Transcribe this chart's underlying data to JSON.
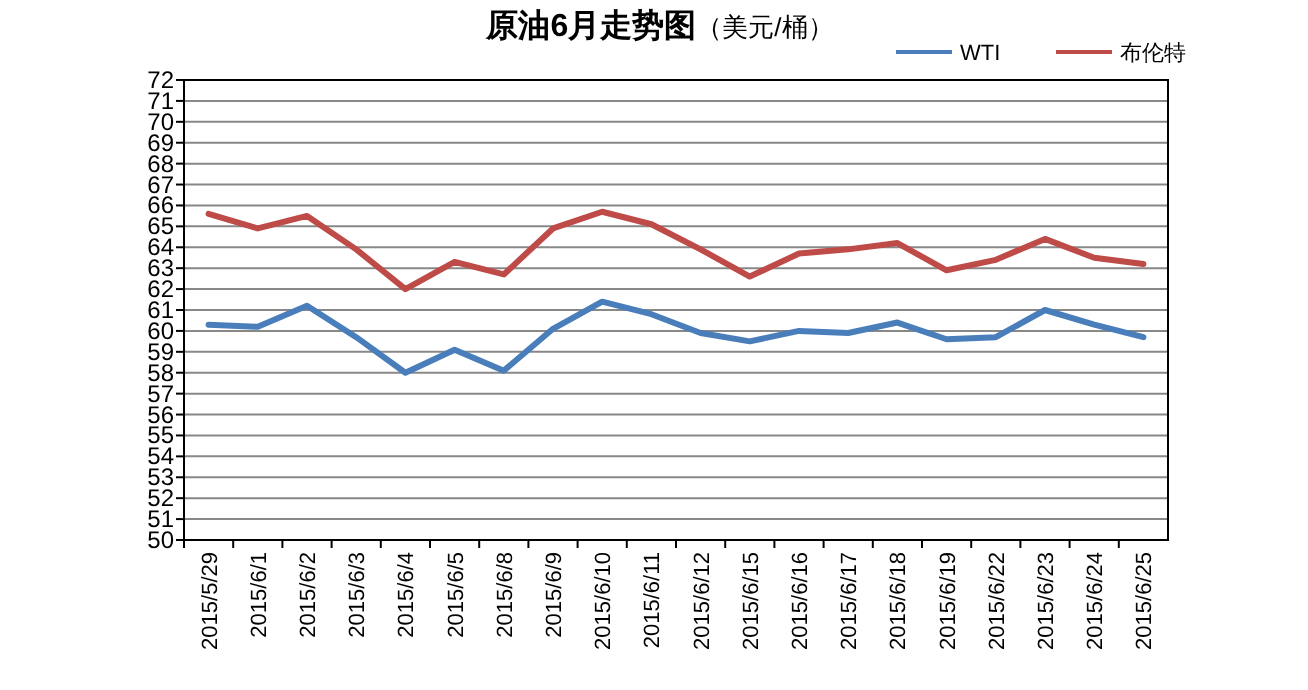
{
  "chart_data": {
    "type": "line",
    "title": "原油6月走势图",
    "subtitle": "（美元/桶）",
    "categories": [
      "2015/5/29",
      "2015/6/1",
      "2015/6/2",
      "2015/6/3",
      "2015/6/4",
      "2015/6/5",
      "2015/6/8",
      "2015/6/9",
      "2015/6/10",
      "2015/6/11",
      "2015/6/12",
      "2015/6/15",
      "2015/6/16",
      "2015/6/17",
      "2015/6/18",
      "2015/6/19",
      "2015/6/22",
      "2015/6/23",
      "2015/6/24",
      "2015/6/25"
    ],
    "series": [
      {
        "name": "WTI",
        "color": "#4a7ebb",
        "values": [
          60.3,
          60.2,
          61.2,
          59.7,
          58.0,
          59.1,
          58.1,
          60.1,
          61.4,
          60.8,
          59.9,
          59.5,
          60.0,
          59.9,
          60.4,
          59.6,
          59.7,
          61.0,
          60.3,
          59.7
        ]
      },
      {
        "name": "布伦特",
        "color": "#be4b48",
        "values": [
          65.6,
          64.9,
          65.5,
          63.9,
          62.0,
          63.3,
          62.7,
          64.9,
          65.7,
          65.1,
          63.9,
          62.6,
          63.7,
          63.9,
          64.2,
          62.9,
          63.4,
          64.4,
          63.5,
          63.2
        ]
      }
    ],
    "ylim": [
      50,
      72
    ],
    "yticks": [
      50,
      51,
      52,
      53,
      54,
      55,
      56,
      57,
      58,
      59,
      60,
      61,
      62,
      63,
      64,
      65,
      66,
      67,
      68,
      69,
      70,
      71,
      72
    ],
    "grid": "y",
    "legend": "top right",
    "marker": "none",
    "line_style": "solid"
  }
}
